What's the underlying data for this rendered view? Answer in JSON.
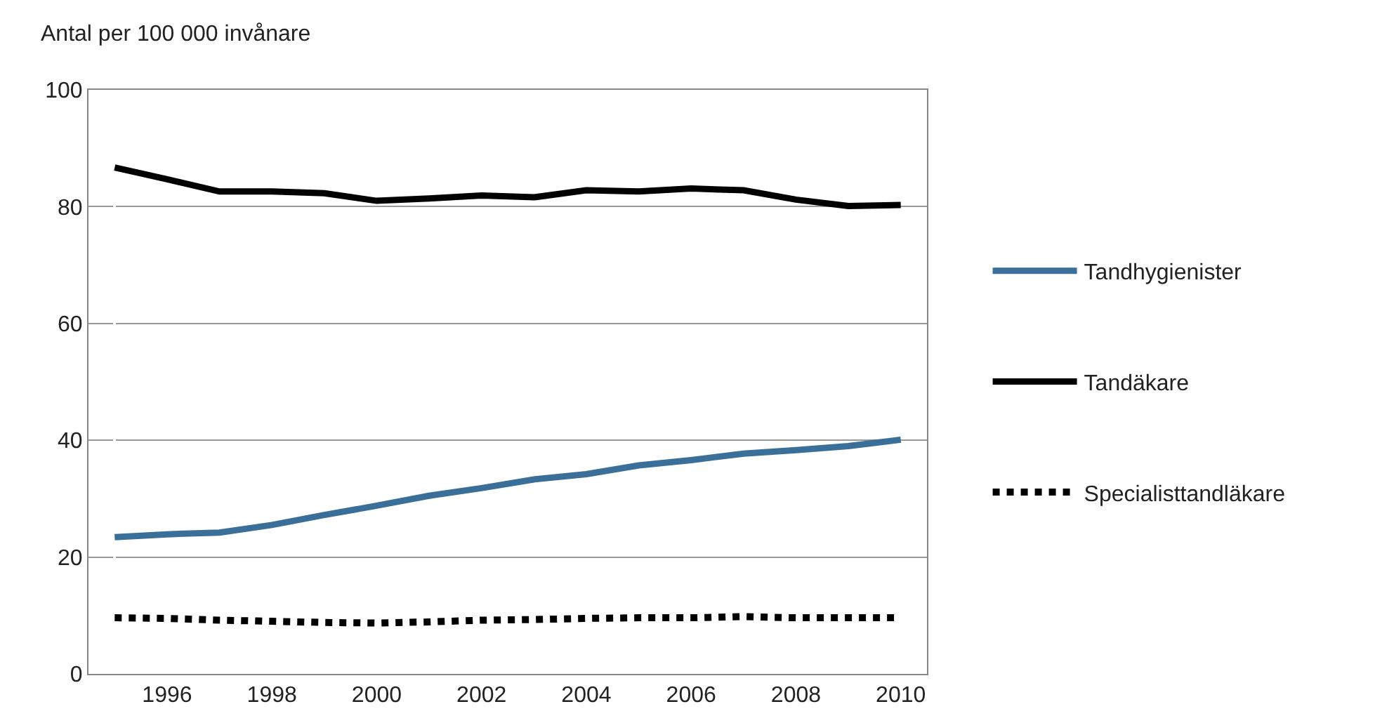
{
  "chart_data": {
    "type": "line",
    "ylabel": "Antal per 100 000 invånare",
    "categories": [
      null,
      "1996",
      null,
      "1998",
      null,
      "2000",
      null,
      "2002",
      null,
      "2004",
      null,
      "2006",
      null,
      "2008",
      null,
      "2010"
    ],
    "series": [
      {
        "name": "Tandhygienister",
        "color": "#3a6f9a",
        "line_style": "solid",
        "values": [
          23.4,
          23.9,
          24.2,
          25.5,
          27.2,
          28.8,
          30.5,
          31.8,
          33.3,
          34.2,
          35.7,
          36.6,
          37.7,
          38.3,
          39.0,
          40.1
        ]
      },
      {
        "name": "Tandäkare",
        "color": "#000000",
        "line_style": "solid",
        "values": [
          86.7,
          84.7,
          82.6,
          82.6,
          82.3,
          81.0,
          81.4,
          81.9,
          81.6,
          82.8,
          82.6,
          83.1,
          82.8,
          81.2,
          80.1,
          80.3
        ]
      },
      {
        "name": "Specialisttandläkare",
        "color": "#000000",
        "line_style": "dotted",
        "values": [
          9.6,
          9.5,
          9.2,
          9.0,
          8.8,
          8.7,
          8.9,
          9.2,
          9.3,
          9.5,
          9.6,
          9.6,
          9.8,
          9.6,
          9.6,
          9.6
        ]
      }
    ],
    "ylim": [
      0,
      100
    ],
    "yticks": [
      0,
      20,
      40,
      60,
      80,
      100
    ],
    "grid": "y",
    "legend": "right",
    "marker": "none"
  }
}
